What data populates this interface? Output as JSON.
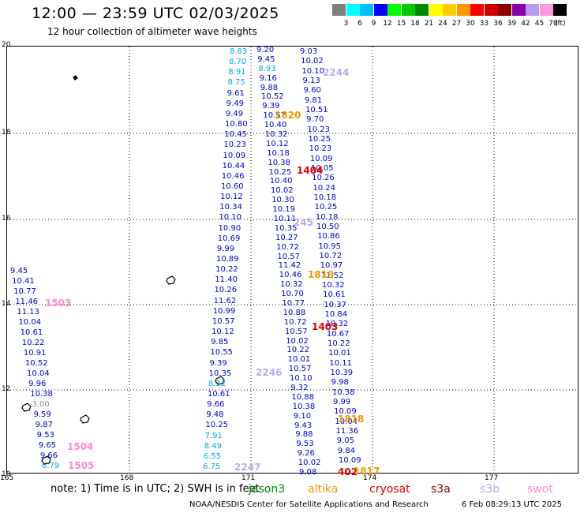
{
  "title": "12:00 — 23:59 UTC 02/03/2025",
  "subtitle": "12 hour collection of altimeter wave heights",
  "legend": {
    "unit": "(ft)",
    "colors": [
      "#7f7f7f",
      "#00ffff",
      "#00bfff",
      "#0000ff",
      "#00ff00",
      "#00cc00",
      "#008800",
      "#ffff00",
      "#ffcc00",
      "#ff9900",
      "#ff0000",
      "#cc0000",
      "#880000",
      "#8800aa",
      "#bb99ee",
      "#ff99dd",
      "#000000"
    ],
    "labels": [
      "3",
      "6",
      "9",
      "12",
      "15",
      "18",
      "21",
      "24",
      "27",
      "30",
      "33",
      "36",
      "39",
      "42",
      "45",
      "70"
    ]
  },
  "axes": {
    "x_ticks": [
      "165",
      "168",
      "171",
      "174",
      "177"
    ],
    "y_ticks": [
      "20",
      "18",
      "16",
      "14",
      "12",
      "10"
    ]
  },
  "passes": [
    {
      "id": "2244",
      "color": "#bbaaee"
    },
    {
      "id": "1404",
      "color": "#dd0000"
    },
    {
      "id": "245",
      "color": "#bbaaee"
    },
    {
      "id": "1819",
      "color": "#ee9900"
    },
    {
      "id": "1503",
      "color": "#ff88cc"
    },
    {
      "id": "1403",
      "color": "#dd0000"
    },
    {
      "id": "2246",
      "color": "#bbaaee"
    },
    {
      "id": "1818",
      "color": "#ee9900"
    },
    {
      "id": "1504",
      "color": "#ff88cc"
    },
    {
      "id": "1505",
      "color": "#ff88cc"
    },
    {
      "id": "2247",
      "color": "#bbaaee"
    },
    {
      "id": "402",
      "color": "#dd0000"
    },
    {
      "id": "1817",
      "color": "#ee9900"
    },
    {
      "id": "1820",
      "color": "#ee9900"
    }
  ],
  "track_a": [
    "8.83",
    "8.70",
    "8.91",
    "8.75",
    "9.61",
    "9.49",
    "9.49",
    "10.80",
    "10.45",
    "10.23",
    "10.09",
    "10.44",
    "10.46",
    "10.60",
    "10.12",
    "10.34",
    "10.10",
    "10.90",
    "10.69",
    "9.99",
    "10.89",
    "10.22",
    "11.40",
    "10.26",
    "11.62",
    "10.99",
    "10.57",
    "10.12",
    "9.85",
    "10.55",
    "9.39",
    "10.35",
    "8.32",
    "10.61",
    "9.66",
    "9.48",
    "10.25",
    "7.91",
    "8.49",
    "6.55",
    "6.75"
  ],
  "track_b": [
    "9.20",
    "9.45",
    "8.93",
    "9.16",
    "9.88",
    "10.52",
    "9.39",
    "10.57",
    "10.40",
    "10.32",
    "10.12",
    "10.18",
    "10.38",
    "10.25",
    "10.40",
    "10.02",
    "10.30",
    "10.19",
    "10.11",
    "10.35",
    "10.27",
    "10.72",
    "10.57",
    "11.42",
    "10.46",
    "10.32",
    "10.70",
    "10.77",
    "10.88",
    "10.72",
    "10.57",
    "10.02",
    "10.22",
    "10.01",
    "10.57",
    "10.10",
    "9.32",
    "10.88",
    "10.38",
    "9.10",
    "9.43",
    "9.88",
    "9.53",
    "9.26",
    "10.02",
    "9.08"
  ],
  "track_c": [
    "9.03",
    "10.02",
    "10.10",
    "9.13",
    "9.60",
    "9.81",
    "10.51",
    "9.70",
    "10.23",
    "10.25",
    "10.23",
    "10.09",
    "10.05",
    "10.26",
    "10.24",
    "10.18",
    "10.25",
    "10.18",
    "10.50",
    "10.86",
    "10.95",
    "10.72",
    "10.97",
    "11.52",
    "10.32",
    "10.61",
    "10.37",
    "10.84",
    "10.32",
    "10.67",
    "10.22",
    "10.01",
    "10.11",
    "10.39",
    "9.98",
    "10.38",
    "9.99",
    "10.09",
    "10.04",
    "11.36",
    "9.05",
    "9.84",
    "10.09"
  ],
  "west_track": [
    "9.45",
    "10.41",
    "10.77",
    "11.46",
    "11.13",
    "10.04",
    "10.61",
    "10.22",
    "10.91",
    "10.52",
    "10.04",
    "9.96",
    "10.38",
    "3.00",
    "9.59",
    "9.87",
    "9.53",
    "9.65",
    "9.66",
    "6.79"
  ],
  "note": "note:  1) Time is in UTC;  2) SWH is in feet",
  "satellites": [
    {
      "name": "jason3",
      "color": "#008800"
    },
    {
      "name": "altika",
      "color": "#ee9900"
    },
    {
      "name": "cryosat",
      "color": "#dd0000"
    },
    {
      "name": "s3a",
      "color": "#880000"
    },
    {
      "name": "s3b",
      "color": "#bbaaee"
    },
    {
      "name": "swot",
      "color": "#ff88cc"
    }
  ],
  "footer_org": "NOAA/NESDIS Center for Satellite Applications and Research",
  "footer_date": "6 Feb 08:29:13 UTC 2025"
}
